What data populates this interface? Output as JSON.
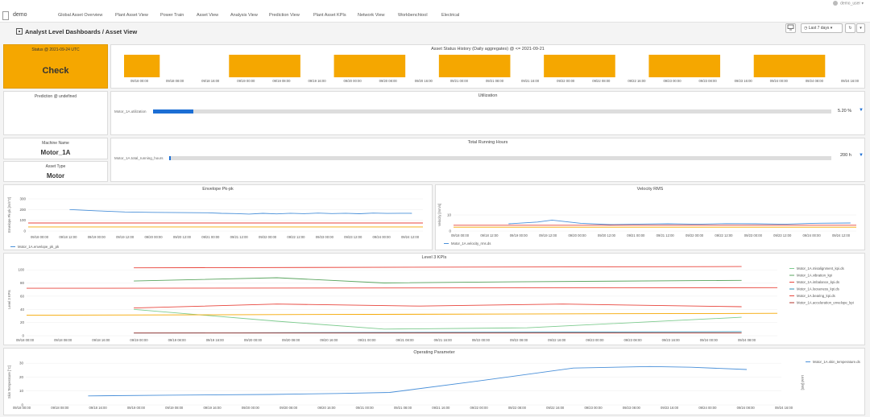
{
  "nav": {
    "app_name": "demo",
    "tabs": [
      "Global Asset Overview",
      "Plant Asset View",
      "Power Train",
      "Asset View",
      "Analysis View",
      "Prediction View",
      "Plant Asset KPIs",
      "Network View",
      "Workbenchtool",
      "Electrical"
    ],
    "user": "demo_user"
  },
  "header": {
    "title": "Analyst Level Dashboards / Asset View",
    "time_range": "Last 7 days"
  },
  "status": {
    "label": "Status @ 2021-09-24 UTC",
    "value": "Check",
    "color": "#f5a700"
  },
  "prediction": {
    "label": "Prediction @ undefined"
  },
  "machine": {
    "label": "Machine Name",
    "value": "Motor_1A"
  },
  "asset_type": {
    "label": "Asset Type",
    "value": "Motor"
  },
  "utilization": {
    "title": "Utilization",
    "series": "Motor_1A.utilization",
    "value_text": "5.20 %",
    "fraction": 0.052
  },
  "running_hours": {
    "title": "Total Running Hours",
    "series": "Motor_1A.total_running_hours",
    "value_text": "200 h",
    "fraction": 0.002
  },
  "chart_data": [
    {
      "type": "bar",
      "title": "Asset Status History (Daily aggregates) @ <= 2021-09-21",
      "categories": [
        "09/18",
        "09/19",
        "09/20",
        "09/21",
        "09/22",
        "09/23",
        "09/24"
      ],
      "x_ticks": [
        "09/18 00:00",
        "09/18 08:00",
        "09/18 16:00",
        "09/19 00:00",
        "09/19 08:00",
        "09/19 16:00",
        "09/20 00:00",
        "09/20 08:00",
        "09/20 16:00",
        "09/21 00:00",
        "09/21 08:00",
        "09/21 16:00",
        "09/22 00:00",
        "09/22 08:00",
        "09/22 16:00",
        "09/23 00:00",
        "09/23 08:00",
        "09/23 16:00",
        "09/24 00:00",
        "09/24 08:00",
        "09/24 16:00"
      ],
      "values": [
        "Check",
        "Check",
        "Check",
        "Check",
        "Check",
        "Check",
        "Check"
      ],
      "color": "#f5a700"
    },
    {
      "type": "line",
      "title": "Envelope Pk-pk",
      "ylabel": "Envelope Pk-pk [m/s^2]",
      "ylim": [
        0,
        300
      ],
      "y_ticks": [
        "300",
        "200",
        "100",
        "0"
      ],
      "x_ticks": [
        "09/18 00:00",
        "09/18 12:00",
        "09/19 00:00",
        "09/19 12:00",
        "09/20 00:00",
        "09/20 12:00",
        "09/21 00:00",
        "09/21 12:00",
        "09/22 00:00",
        "09/22 12:00",
        "09/23 00:00",
        "09/23 12:00",
        "09/24 00:00",
        "09/24 12:00"
      ],
      "series": [
        {
          "name": "Motor_1A.envelope_pk_pk",
          "color": "#4a90d9",
          "x": [
            0.5,
            1.5,
            2.5,
            3.5,
            4.5,
            5.5,
            6.0,
            6.5,
            7.0,
            7.5,
            8.0,
            8.5,
            9.0,
            9.5,
            10.0,
            10.5,
            11.0,
            11.5,
            12.0,
            12.5,
            12.9
          ],
          "y": [
            200,
            188,
            178,
            174,
            172,
            170,
            165,
            163,
            158,
            165,
            160,
            166,
            162,
            167,
            163,
            166,
            161,
            167,
            164,
            166,
            165
          ]
        },
        {
          "name": "alarm",
          "color": "#e8453c",
          "x": [
            -1,
            13.3
          ],
          "y": [
            75,
            75
          ]
        },
        {
          "name": "warning",
          "color": "#f5a700",
          "x": [
            -1,
            13.3
          ],
          "y": [
            38,
            38
          ]
        }
      ],
      "legend": [
        "Motor_1A.envelope_pk_pk"
      ]
    },
    {
      "type": "line",
      "title": "Velocity RMS",
      "ylabel": "Velocity [mm/s]",
      "ylim": [
        0,
        20
      ],
      "y_ticks": [
        "10",
        "0"
      ],
      "x_ticks": [
        "09/18 00:00",
        "09/18 12:00",
        "09/19 00:00",
        "09/19 12:00",
        "09/20 00:00",
        "09/20 12:00",
        "09/21 00:00",
        "09/21 12:00",
        "09/22 00:00",
        "09/22 12:00",
        "09/23 00:00",
        "09/23 12:00",
        "09/24 00:00",
        "09/24 12:00"
      ],
      "series": [
        {
          "name": "Motor_1A.velocity_rms",
          "color": "#4a90d9",
          "x": [
            1.5,
            2.5,
            3.0,
            3.5,
            4.0,
            5.0,
            6.0,
            7.0,
            8.0,
            9.0,
            10.0,
            11.0,
            12.0,
            13.3
          ],
          "y": [
            4.5,
            5.6,
            6.8,
            5.8,
            4.8,
            4.0,
            4.3,
            4.5,
            4.2,
            4.6,
            4.5,
            4.2,
            4.8,
            5.0
          ]
        },
        {
          "name": "alarm",
          "color": "#e8453c",
          "x": [
            -0.4,
            13.5
          ],
          "y": [
            3.6,
            3.6
          ]
        },
        {
          "name": "warning",
          "color": "#f5a700",
          "x": [
            -0.4,
            13.5
          ],
          "y": [
            2.4,
            2.4
          ]
        }
      ],
      "legend": [
        "Motor_1A.velocity_rms.ds"
      ]
    },
    {
      "type": "line",
      "title": "Level 3 KPIs",
      "ylabel": "Level 3 KPIs",
      "ylim": [
        0,
        110
      ],
      "y_ticks": [
        "100",
        "80",
        "60",
        "40",
        "20",
        "0"
      ],
      "x_ticks": [
        "09/18 00:00",
        "09/18 08:00",
        "09/18 16:00",
        "09/19 00:00",
        "09/19 08:00",
        "09/19 16:00",
        "09/20 00:00",
        "09/20 08:00",
        "09/20 16:00",
        "09/21 00:00",
        "09/21 08:00",
        "09/21 16:00",
        "09/22 00:00",
        "09/22 08:00",
        "09/22 16:00",
        "09/23 00:00",
        "09/23 08:00",
        "09/23 16:00",
        "09/24 00:00",
        "09/24 08:00"
      ],
      "series": [
        {
          "name": "Motor_1A.misalignment_kpi.ds",
          "color": "#7ecb8f",
          "x": [
            2,
            6,
            9,
            13,
            19
          ],
          "y": [
            40,
            22,
            10,
            12,
            28
          ]
        },
        {
          "name": "Motor_1A.vibration_kpi",
          "color": "#5aa55f",
          "x": [
            2,
            6,
            9,
            13,
            19
          ],
          "y": [
            83,
            88,
            80,
            82,
            84
          ]
        },
        {
          "name": "Motor_1A.imbalance_kpi.ds",
          "color": "#e8453c",
          "x": [
            2,
            19
          ],
          "y": [
            103,
            105
          ]
        },
        {
          "name": "Motor_1A.looseness_kpi.ds",
          "color": "#2f8fb3",
          "x": [
            2,
            19
          ],
          "y": [
            4,
            6
          ]
        },
        {
          "name": "Motor_1A.bearing_kpi.ds",
          "color": "#e8453c",
          "x": [
            2,
            6,
            10,
            14,
            19
          ],
          "y": [
            42,
            48,
            45,
            48,
            44
          ]
        },
        {
          "name": "Motor_1A.acceleration_envelope_kpi",
          "color": "#b0362c",
          "x": [
            2,
            19
          ],
          "y": [
            4,
            4
          ]
        },
        {
          "name": "threshold_warning",
          "color": "#f5a700",
          "x": [
            -1,
            20
          ],
          "y": [
            31,
            34
          ]
        },
        {
          "name": "threshold_alarm",
          "color": "#e8453c",
          "x": [
            -1,
            20
          ],
          "y": [
            72,
            73
          ]
        }
      ],
      "legend": [
        "Motor_1A.misalignment_kpi.ds",
        "Motor_1A.vibration_kpi",
        "Motor_1A.imbalance_kpi.ds",
        "Motor_1A.looseness_kpi.ds",
        "Motor_1A.bearing_kpi.ds",
        "Motor_1A.acceleration_envelope_kpi"
      ]
    },
    {
      "type": "line",
      "title": "Operating Parameter",
      "ylabel": "Skin Temperature [°C]",
      "ylabel_right": "Load [kW]",
      "ylim": [
        0,
        33
      ],
      "y_ticks": [
        "30",
        "20",
        "10",
        "0"
      ],
      "x_ticks": [
        "09/18 00:00",
        "09/18 08:00",
        "09/18 16:00",
        "09/19 00:00",
        "09/19 08:00",
        "09/19 16:00",
        "09/20 00:00",
        "09/20 08:00",
        "09/20 16:00",
        "09/21 00:00",
        "09/21 08:00",
        "09/21 16:00",
        "09/22 00:00",
        "09/22 08:00",
        "09/22 16:00",
        "09/23 00:00",
        "09/23 08:00",
        "09/23 16:00",
        "09/24 00:00",
        "09/24 08:00",
        "09/24 16:00"
      ],
      "series": [
        {
          "name": "Motor_1A.skin_temperature.ds",
          "color": "#4a90d9",
          "x": [
            0.8,
            3,
            6,
            8,
            9.5,
            12,
            14.8,
            17,
            18.2,
            19.8
          ],
          "y": [
            6.5,
            7,
            7.5,
            8.2,
            9,
            17,
            26.5,
            27.6,
            27.1,
            25.5
          ]
        }
      ],
      "legend": [
        "Motor_1A.skin_temperature.ds"
      ]
    }
  ]
}
